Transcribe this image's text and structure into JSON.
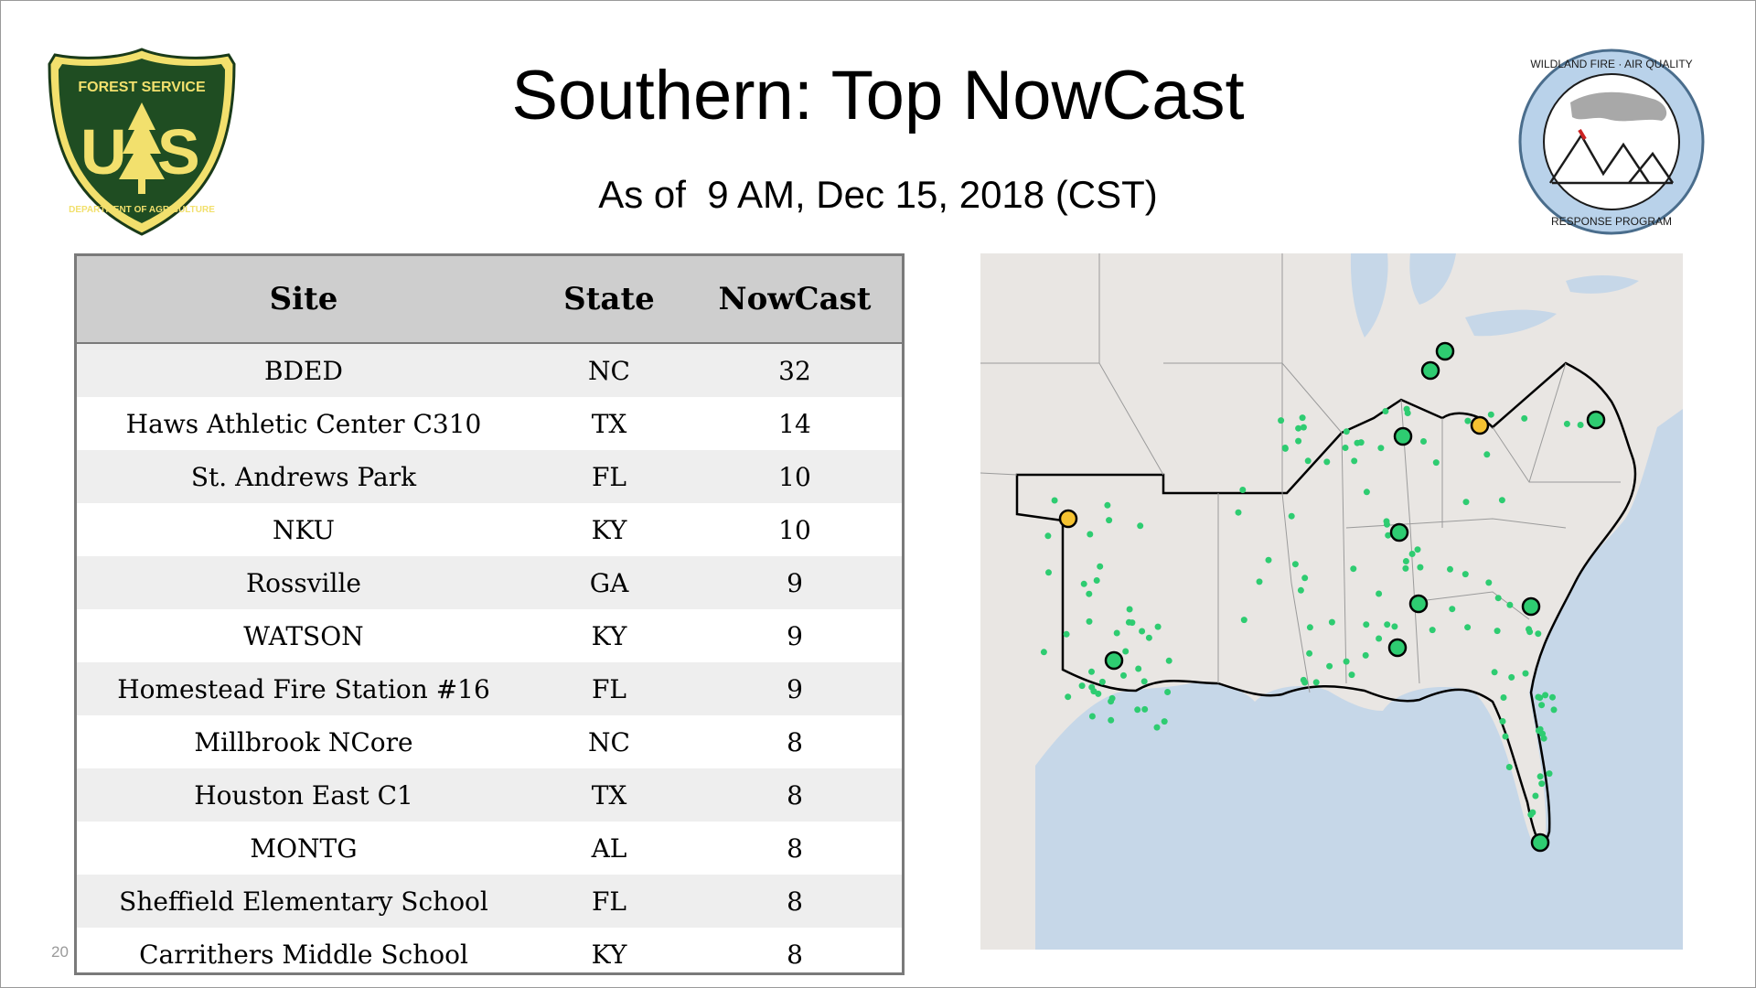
{
  "slide": {
    "title": "Southern: Top NowCast",
    "subtitle": "As of  9 AM, Dec 15, 2018 (CST)",
    "page_number": "20"
  },
  "logos": {
    "left": {
      "name": "forest-service-shield",
      "top_text": "FOREST SERVICE",
      "mark": "US",
      "bottom_text": "DEPARTMENT OF AGRICULTURE"
    },
    "right": {
      "name": "wildland-fire-air-quality-badge",
      "top_text": "WILDLAND FIRE · AIR QUALITY",
      "bottom_text": "RESPONSE PROGRAM"
    }
  },
  "table": {
    "headers": {
      "site": "Site",
      "state": "State",
      "nowcast": "NowCast"
    },
    "rows": [
      {
        "site": "BDED",
        "state": "NC",
        "nowcast": "32"
      },
      {
        "site": "Haws Athletic Center C310",
        "state": "TX",
        "nowcast": "14"
      },
      {
        "site": "St. Andrews Park",
        "state": "FL",
        "nowcast": "10"
      },
      {
        "site": "NKU",
        "state": "KY",
        "nowcast": "10"
      },
      {
        "site": "Rossville",
        "state": "GA",
        "nowcast": "9"
      },
      {
        "site": "WATSON",
        "state": "KY",
        "nowcast": "9"
      },
      {
        "site": "Homestead Fire Station #16",
        "state": "FL",
        "nowcast": "9"
      },
      {
        "site": "Millbrook NCore",
        "state": "NC",
        "nowcast": "8"
      },
      {
        "site": "Houston East C1",
        "state": "TX",
        "nowcast": "8"
      },
      {
        "site": "MONTG",
        "state": "AL",
        "nowcast": "8"
      },
      {
        "site": "Sheffield Elementary School",
        "state": "FL",
        "nowcast": "8"
      },
      {
        "site": "Carrithers Middle School",
        "state": "KY",
        "nowcast": "8"
      }
    ]
  },
  "map": {
    "colors": {
      "land": "#e9e6e3",
      "water": "#c6d7e8",
      "monitor_good": "#2ecc71",
      "monitor_moderate": "#f5c231",
      "region_outline": "#000000"
    },
    "highlighted_sites": [
      {
        "site": "BDED",
        "level": "moderate"
      },
      {
        "site": "Haws Athletic Center C310",
        "level": "moderate"
      },
      {
        "site": "St. Andrews Park",
        "level": "good"
      },
      {
        "site": "NKU",
        "level": "good"
      },
      {
        "site": "Rossville",
        "level": "good"
      },
      {
        "site": "WATSON",
        "level": "good"
      },
      {
        "site": "Homestead Fire Station #16",
        "level": "good"
      },
      {
        "site": "Millbrook NCore",
        "level": "good"
      },
      {
        "site": "Houston East C1",
        "level": "good"
      },
      {
        "site": "MONTG",
        "level": "good"
      },
      {
        "site": "Sheffield Elementary School",
        "level": "good"
      },
      {
        "site": "Carrithers Middle School",
        "level": "good"
      }
    ]
  }
}
